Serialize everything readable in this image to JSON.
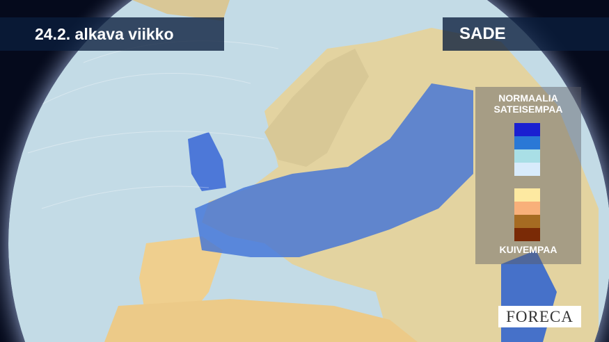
{
  "header": {
    "title": "24.2. alkava viikko",
    "layer": "SADE"
  },
  "legend": {
    "top_label_1": "NORMAALIA",
    "top_label_2": "SATEISEMPAA",
    "bottom_label": "KUIVEMPAA",
    "wet_colors": [
      "#1a1fd1",
      "#2a78d6",
      "#a9dfe6",
      "#d8ebfb"
    ],
    "dry_colors": [
      "#fde9a1",
      "#f8b07a",
      "#a66b22",
      "#7a2a06"
    ]
  },
  "logo": {
    "text": "FORECA"
  },
  "colors": {
    "ocean": "#c3dbe6",
    "land": "#e9d9a6",
    "wet": "#3a6fd6",
    "background": "#050a1c"
  }
}
